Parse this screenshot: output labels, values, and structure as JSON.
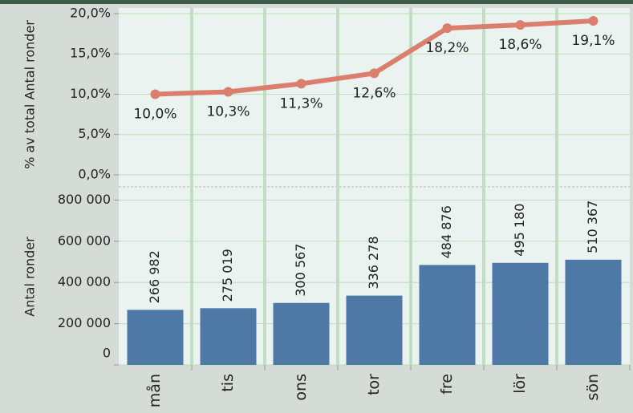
{
  "chart_data": [
    {
      "type": "line",
      "y_label": "% av total Antal ronder",
      "categories": [
        "mån",
        "tis",
        "ons",
        "tor",
        "fre",
        "lör",
        "sön"
      ],
      "values": [
        10.0,
        10.3,
        11.3,
        12.6,
        18.2,
        18.6,
        19.1
      ],
      "value_labels": [
        "10,0%",
        "10,3%",
        "11,3%",
        "12,6%",
        "18,2%",
        "18,6%",
        "19,1%"
      ],
      "color": "#da7f6d",
      "ylim": [
        -1.4,
        20.2
      ],
      "yticks": [
        {
          "value": 0,
          "label": "0,0%"
        },
        {
          "value": 5,
          "label": "5,0%"
        },
        {
          "value": 10,
          "label": "10,0%"
        },
        {
          "value": 15,
          "label": "15,0%"
        },
        {
          "value": 20,
          "label": "20,0%"
        }
      ],
      "grid": true
    },
    {
      "type": "bar",
      "y_label": "Antal ronder",
      "categories": [
        "mån",
        "tis",
        "ons",
        "tor",
        "fre",
        "lör",
        "sön"
      ],
      "values": [
        266982,
        275019,
        300567,
        336278,
        484876,
        495180,
        510367
      ],
      "value_labels": [
        "266 982",
        "275 019",
        "300 567",
        "336 278",
        "484 876",
        "495 180",
        "510 367"
      ],
      "color": "#4e78a6",
      "ylim": [
        0,
        864000
      ],
      "yticks": [
        0,
        {
          "value": 200000,
          "label": "200 000"
        },
        {
          "value": 400000,
          "label": "400 000"
        },
        {
          "value": 600000,
          "label": "600 000"
        },
        {
          "value": 800000,
          "label": "800 000"
        }
      ],
      "grid": true
    }
  ]
}
